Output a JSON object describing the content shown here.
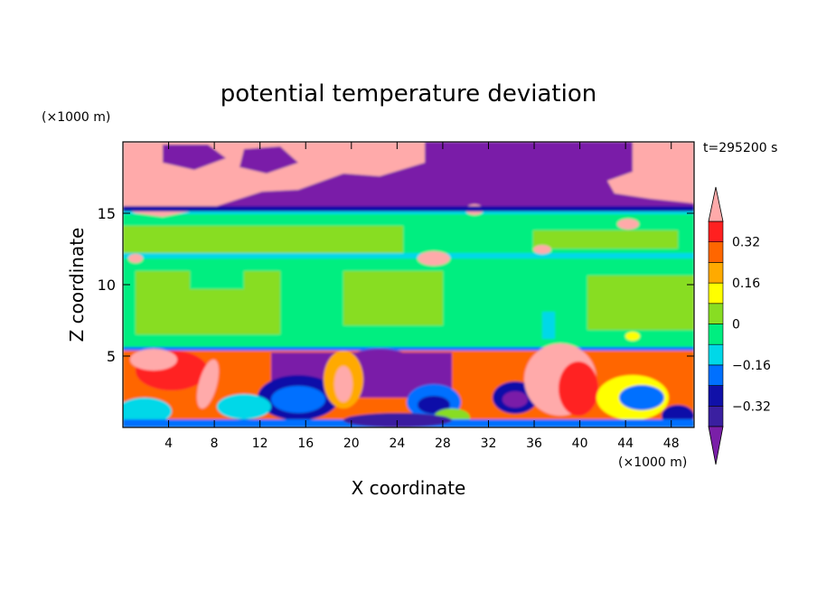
{
  "chart_data": {
    "type": "heatmap",
    "title": "potential temperature deviation",
    "xlabel": "X coordinate",
    "ylabel": "Z coordinate",
    "x_unit": "(×1000 m)",
    "y_unit": "(×1000 m)",
    "time_label": "t=295200 s",
    "xlim": [
      0,
      50
    ],
    "ylim": [
      0,
      20
    ],
    "x_ticks": [
      4,
      8,
      12,
      16,
      20,
      24,
      28,
      32,
      36,
      40,
      44,
      48
    ],
    "y_ticks": [
      5,
      10,
      15
    ],
    "colorbar": {
      "levels": [
        -0.4,
        -0.32,
        -0.24,
        -0.16,
        -0.08,
        0,
        0.08,
        0.16,
        0.24,
        0.32,
        0.4
      ],
      "tick_labels": [
        "0.32",
        "0.16",
        "0",
        "−0.16",
        "−0.32"
      ],
      "tick_values": [
        0.32,
        0.16,
        0,
        -0.16,
        -0.32
      ],
      "colors": [
        "#7a1fa8",
        "#3a1fa0",
        "#1010a8",
        "#0070ff",
        "#00d8e8",
        "#00ee80",
        "#88dd22",
        "#ffff00",
        "#ffaa00",
        "#ff6600",
        "#ff2020",
        "#ffaaaa"
      ],
      "extend": "both"
    },
    "bands": [
      {
        "z_range": [
          15.5,
          20
        ],
        "description_color": "#7a1fa8",
        "secondary_color": "#ffaaaa"
      },
      {
        "z_range": [
          14.8,
          15.5
        ],
        "description_color": "#1010a8"
      },
      {
        "z_range": [
          5.4,
          14.8
        ],
        "description_color": "#00ee80",
        "secondary_color": "#88dd22"
      },
      {
        "z_range": [
          0,
          5.4
        ],
        "description_color": "#ff6600",
        "secondary_color": "#0070ff"
      }
    ]
  }
}
